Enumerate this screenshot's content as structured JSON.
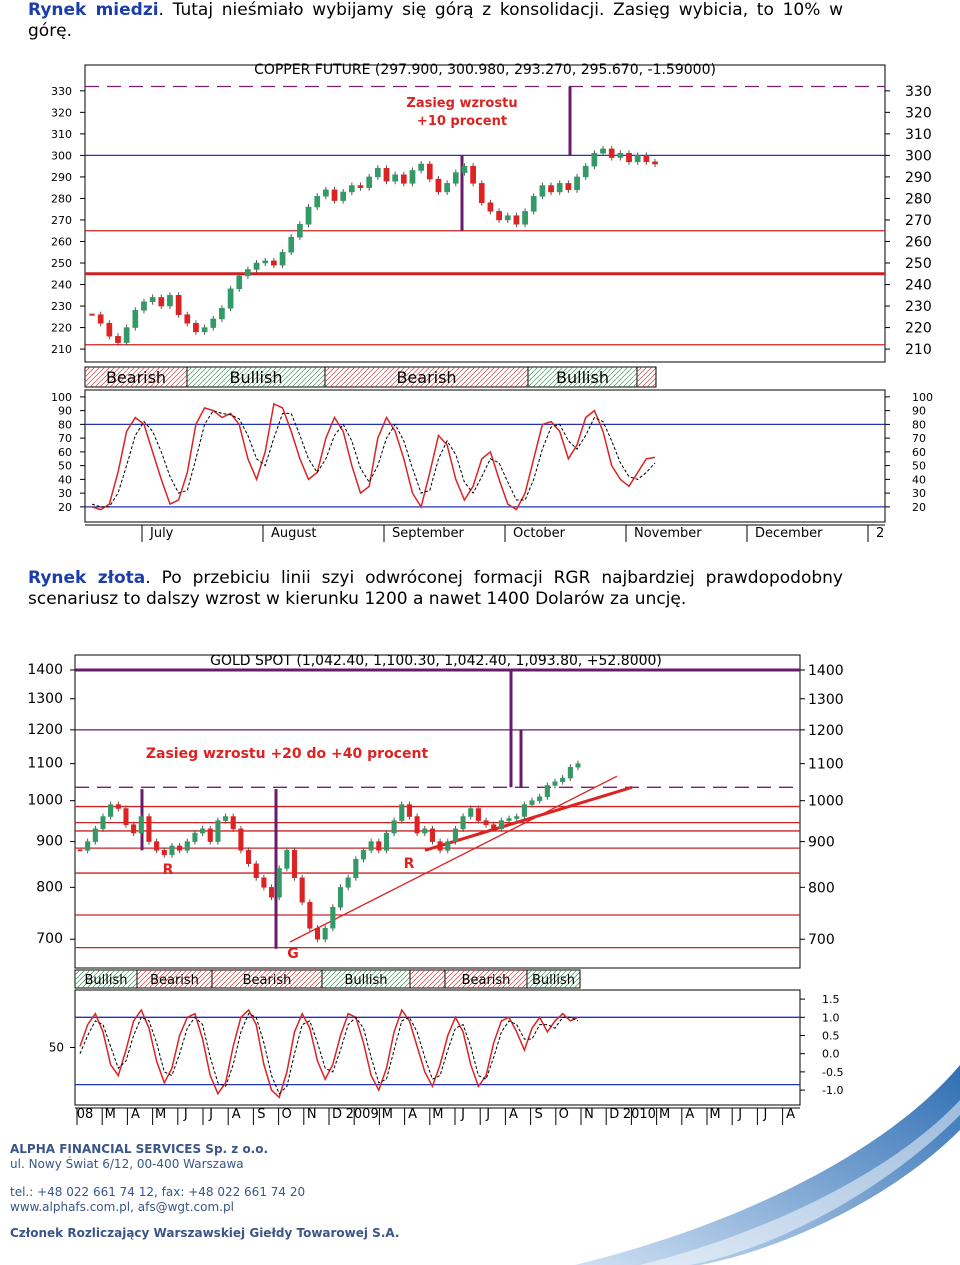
{
  "paragraphs": [
    {
      "lead": "Rynek miedzi",
      "text": ". Tutaj nieśmiało wybijamy się górą z konsolidacji. Zasięg wybicia, to 10% w górę."
    },
    {
      "lead": "Rynek złota",
      "text": ". Po przebiciu linii szyi odwróconej formacji RGR najbardziej prawdopodobny scenariusz to dalszy wzrost w kierunku 1200 a nawet 1400 Dolarów za uncję."
    }
  ],
  "chart_data": [
    {
      "type": "candlestick",
      "title": "COPPER FUTURE (297.900, 300.980, 293.270, 295.670, -1.59000)",
      "categories": [
        "July",
        "August",
        "September",
        "October",
        "November",
        "December",
        "2"
      ],
      "closes": [
        226,
        222,
        216,
        213,
        220,
        228,
        232,
        234,
        230,
        235,
        226,
        222,
        218,
        220,
        224,
        229,
        238,
        244,
        247,
        250,
        251,
        249,
        255,
        262,
        268,
        276,
        281,
        284,
        279,
        283,
        286,
        285,
        290,
        294,
        288,
        291,
        287,
        293,
        296,
        289,
        283,
        287,
        292,
        295,
        287,
        278,
        274,
        270,
        272,
        268,
        274,
        281,
        286,
        283,
        287,
        284,
        290,
        295,
        301,
        303,
        299,
        301,
        297,
        300,
        297,
        296
      ],
      "up_color": "#339966",
      "down_color": "#dd2222",
      "ylim": [
        204,
        342
      ],
      "yticks": [
        210,
        220,
        230,
        240,
        250,
        260,
        270,
        280,
        290,
        300,
        310,
        320,
        330
      ],
      "log": false,
      "hlines": [
        {
          "value": 332,
          "color": "#7a1f6e",
          "dash": true
        },
        {
          "value": 300,
          "color": "#2233bb"
        },
        {
          "value": 265,
          "color": "#cc2222"
        },
        {
          "value": 245,
          "color": "#cc2222",
          "thick": true
        },
        {
          "value": 212,
          "color": "#cc2222"
        }
      ],
      "ranges": [
        {
          "from": 300,
          "to": 265
        },
        {
          "from": 332,
          "to": 300
        }
      ],
      "annotations": [
        "Zasieg wzrostu",
        "+10 procent"
      ],
      "bands": [
        {
          "label": "Bearish"
        },
        {
          "label": "Bullish"
        },
        {
          "label": "Bearish"
        },
        {
          "label": "Bullish"
        }
      ],
      "oscillator": {
        "ylim": [
          9,
          105
        ],
        "yticks": [
          20,
          30,
          40,
          50,
          60,
          70,
          80,
          90,
          100
        ],
        "levels": [
          80,
          20
        ],
        "series": [
          {
            "color": "#dd2222",
            "dash": false,
            "values": [
              20,
              18,
              22,
              45,
              75,
              85,
              80,
              60,
              40,
              22,
              25,
              45,
              80,
              92,
              90,
              85,
              88,
              80,
              55,
              40,
              60,
              95,
              92,
              75,
              55,
              40,
              45,
              70,
              85,
              75,
              50,
              30,
              35,
              70,
              85,
              75,
              55,
              30,
              20,
              45,
              72,
              65,
              40,
              25,
              35,
              55,
              60,
              40,
              22,
              18,
              30,
              55,
              80,
              82,
              75,
              55,
              65,
              85,
              90,
              75,
              50,
              40,
              35,
              45,
              55,
              56
            ]
          },
          {
            "color": "#000000",
            "dash": true,
            "values": [
              22,
              20,
              20,
              30,
              50,
              72,
              82,
              75,
              60,
              42,
              30,
              32,
              55,
              80,
              90,
              88,
              87,
              84,
              72,
              55,
              50,
              70,
              88,
              88,
              72,
              55,
              45,
              55,
              72,
              80,
              68,
              48,
              38,
              50,
              70,
              80,
              68,
              48,
              30,
              32,
              55,
              68,
              58,
              38,
              30,
              42,
              55,
              52,
              38,
              25,
              25,
              40,
              62,
              78,
              80,
              68,
              62,
              72,
              85,
              82,
              68,
              52,
              42,
              40,
              45,
              52
            ]
          }
        ]
      }
    },
    {
      "type": "candlestick",
      "title": "GOLD SPOT (1,042.40, 1,100.30, 1,042.40, 1,093.80, +52.8000)",
      "categories": [
        "08",
        "M",
        "A",
        "M",
        "J",
        "J",
        "A",
        "S",
        "O",
        "N",
        "D",
        "2009",
        "M",
        "A",
        "M",
        "J",
        "J",
        "A",
        "S",
        "O",
        "N",
        "D",
        "2010",
        "M",
        "A",
        "M",
        "J",
        "J",
        "A"
      ],
      "closes": [
        880,
        900,
        930,
        960,
        990,
        980,
        940,
        920,
        960,
        900,
        880,
        870,
        890,
        880,
        900,
        920,
        930,
        900,
        950,
        960,
        930,
        880,
        850,
        820,
        800,
        780,
        840,
        880,
        820,
        770,
        720,
        700,
        720,
        760,
        800,
        820,
        860,
        880,
        900,
        880,
        920,
        950,
        990,
        960,
        920,
        930,
        900,
        880,
        900,
        930,
        960,
        980,
        950,
        940,
        930,
        950,
        955,
        960,
        990,
        1000,
        1010,
        1040,
        1050,
        1060,
        1090,
        1100
      ],
      "up_color": "#339966",
      "down_color": "#dd2222",
      "ylim": [
        650,
        1455
      ],
      "yticks": [
        700,
        800,
        900,
        1000,
        1100,
        1200,
        1300,
        1400
      ],
      "log": true,
      "hlines": [
        {
          "value": 1400,
          "color": "#6a1a6a",
          "thick": true
        },
        {
          "value": 1200,
          "color": "#6a1a6a"
        },
        {
          "value": 1035,
          "color": "#7a1f6e",
          "dash": true
        },
        {
          "value": 985,
          "color": "#cc2222"
        },
        {
          "value": 945,
          "color": "#cc2222"
        },
        {
          "value": 925,
          "color": "#cc2222"
        },
        {
          "value": 885,
          "color": "#cc2222"
        },
        {
          "value": 830,
          "color": "#cc2222"
        },
        {
          "value": 745,
          "color": "#cc2222"
        },
        {
          "value": 685,
          "color": "#cc2222"
        }
      ],
      "ranges": [
        {
          "from": 1030,
          "to": 880
        },
        {
          "from": 1030,
          "to": 683
        },
        {
          "from": 1400,
          "to": 1035
        },
        {
          "from": 1200,
          "to": 1035
        }
      ],
      "trendlines": [
        {
          "from": 695,
          "to": 1065
        },
        {
          "from": 880,
          "to": 1035,
          "thick": true
        }
      ],
      "annotations": [
        "Zasieg wzrostu +20 do +40 procent",
        "R",
        "R",
        "G"
      ],
      "bands": [
        {
          "label": "Bullish"
        },
        {
          "label": "Bearish"
        },
        {
          "label": "Bearish"
        },
        {
          "label": "Bullish"
        },
        {
          "label": "Bearish"
        },
        {
          "label": "Bullish"
        }
      ],
      "oscillator": {
        "ylim": [
          -1.41,
          1.75
        ],
        "yticks": [
          {
            "value": 1.5,
            "label": "1.5"
          },
          {
            "value": 1,
            "label": "1.0"
          },
          {
            "value": 0.5,
            "label": "0.5"
          },
          {
            "value": 0,
            "label": "0.0"
          },
          {
            "value": -0.5,
            "label": "-0.5"
          },
          {
            "value": -1,
            "label": "-1.0"
          }
        ],
        "y2lim": [
          0,
          100
        ],
        "y2ticks": [
          50
        ],
        "levels": [
          1.0,
          -0.85
        ],
        "series": [
          {
            "color": "#dd2222",
            "dash": false,
            "values": [
              0.2,
              0.8,
              1.1,
              0.6,
              -0.3,
              -0.6,
              0.1,
              0.9,
              1.2,
              0.7,
              -0.2,
              -0.8,
              -0.4,
              0.5,
              1.0,
              1.1,
              0.4,
              -0.6,
              -1.1,
              -0.8,
              0.2,
              1.0,
              1.2,
              0.8,
              -0.3,
              -1.0,
              -1.2,
              -0.5,
              0.6,
              1.1,
              0.7,
              -0.2,
              -0.7,
              -0.3,
              0.5,
              1.1,
              1.0,
              0.3,
              -0.6,
              -1.0,
              -0.4,
              0.6,
              1.2,
              0.9,
              0.2,
              -0.5,
              -0.9,
              -0.3,
              0.5,
              1.0,
              0.6,
              -0.3,
              -0.9,
              -0.6,
              0.3,
              0.9,
              1.0,
              0.6,
              0.1,
              0.7,
              1.0,
              0.6,
              0.9,
              1.1,
              0.9,
              1.0
            ]
          },
          {
            "color": "#000000",
            "dash": true,
            "values": [
              0.0,
              0.5,
              0.9,
              0.8,
              0.2,
              -0.4,
              -0.2,
              0.5,
              1.0,
              0.9,
              0.3,
              -0.5,
              -0.6,
              0.0,
              0.7,
              1.0,
              0.8,
              -0.1,
              -0.8,
              -0.9,
              -0.3,
              0.6,
              1.1,
              1.0,
              0.3,
              -0.6,
              -1.1,
              -0.9,
              0.0,
              0.8,
              0.9,
              0.3,
              -0.4,
              -0.5,
              0.1,
              0.8,
              1.0,
              0.7,
              -0.1,
              -0.8,
              -0.7,
              0.1,
              0.9,
              1.0,
              0.6,
              -0.1,
              -0.7,
              -0.6,
              0.1,
              0.7,
              0.8,
              0.2,
              -0.6,
              -0.7,
              -0.1,
              0.6,
              0.9,
              0.8,
              0.4,
              0.4,
              0.8,
              0.8,
              0.7,
              1.0,
              1.0,
              0.9
            ]
          }
        ]
      }
    }
  ],
  "footer": {
    "company": "ALPHA FINANCIAL SERVICES Sp. z o.o.",
    "address": "ul. Nowy Świat 6/12, 00-400 Warszawa",
    "phone": "tel.: +48 022 661 74 12, fax: +48 022 661 74 20",
    "web": "www.alphafs.com.pl, afs@wgt.com.pl",
    "member": "Członek Rozliczający Warszawskiej Giełdy Towarowej S.A."
  }
}
